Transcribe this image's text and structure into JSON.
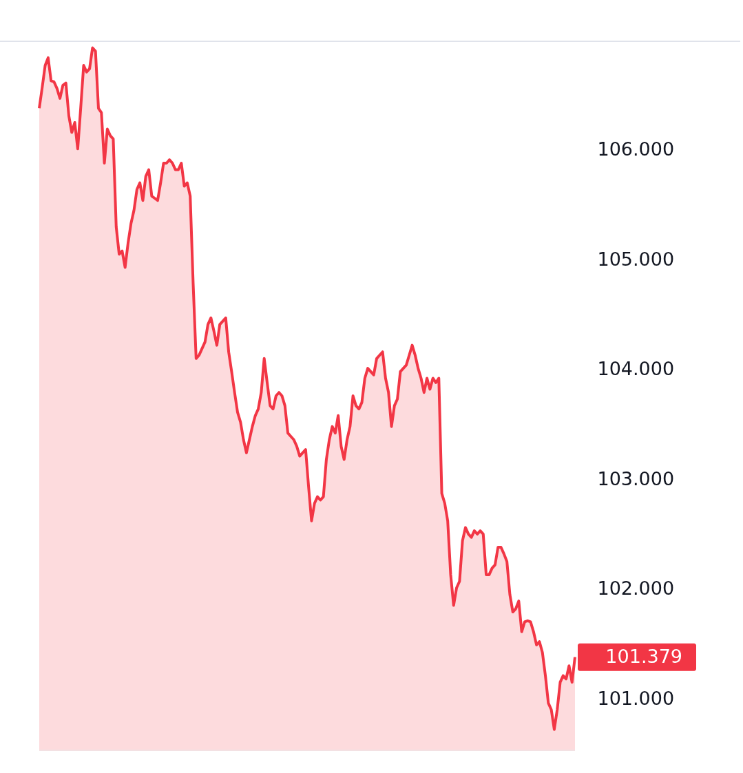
{
  "chart_data": {
    "type": "area",
    "ylim": [
      100.53,
      106.99
    ],
    "yticks": [
      {
        "value": 101,
        "label": "101.000"
      },
      {
        "value": 102,
        "label": "102.000"
      },
      {
        "value": 103,
        "label": "103.000"
      },
      {
        "value": 104,
        "label": "104.000"
      },
      {
        "value": 105,
        "label": "105.000"
      },
      {
        "value": 106,
        "label": "106.000"
      }
    ],
    "annotations": [
      "101.379"
    ],
    "series": [
      {
        "color": "#f23645",
        "values": [
          106.38,
          106.57,
          106.77,
          106.84,
          106.63,
          106.62,
          106.56,
          106.47,
          106.59,
          106.61,
          106.31,
          106.16,
          106.25,
          106.01,
          106.38,
          106.77,
          106.71,
          106.74,
          106.93,
          106.9,
          106.38,
          106.34,
          105.88,
          106.19,
          106.13,
          106.1,
          105.3,
          105.05,
          105.08,
          104.93,
          105.15,
          105.33,
          105.45,
          105.64,
          105.7,
          105.54,
          105.76,
          105.82,
          105.58,
          105.56,
          105.54,
          105.7,
          105.88,
          105.88,
          105.91,
          105.88,
          105.82,
          105.82,
          105.88,
          105.67,
          105.7,
          105.58,
          104.78,
          104.1,
          104.13,
          104.19,
          104.25,
          104.41,
          104.47,
          104.35,
          104.22,
          104.41,
          104.44,
          104.47,
          104.16,
          103.98,
          103.79,
          103.61,
          103.52,
          103.36,
          103.24,
          103.36,
          103.48,
          103.58,
          103.64,
          103.79,
          104.1,
          103.88,
          103.67,
          103.64,
          103.76,
          103.79,
          103.76,
          103.67,
          103.42,
          103.39,
          103.36,
          103.3,
          103.21,
          103.24,
          103.27,
          102.93,
          102.62,
          102.78,
          102.84,
          102.81,
          102.84,
          103.18,
          103.36,
          103.48,
          103.42,
          103.58,
          103.3,
          103.18,
          103.36,
          103.48,
          103.76,
          103.67,
          103.64,
          103.7,
          103.92,
          104.01,
          103.98,
          103.95,
          104.1,
          104.13,
          104.16,
          103.92,
          103.79,
          103.48,
          103.67,
          103.73,
          103.98,
          104.01,
          104.04,
          104.13,
          104.22,
          104.13,
          104.01,
          103.92,
          103.79,
          103.92,
          103.82,
          103.92,
          103.88,
          103.92,
          102.87,
          102.78,
          102.62,
          102.13,
          101.85,
          102.01,
          102.07,
          102.44,
          102.56,
          102.5,
          102.47,
          102.53,
          102.5,
          102.53,
          102.5,
          102.13,
          102.13,
          102.19,
          102.22,
          102.38,
          102.38,
          102.32,
          102.25,
          101.95,
          101.79,
          101.82,
          101.89,
          101.61,
          101.7,
          101.71,
          101.7,
          101.61,
          101.49,
          101.52,
          101.42,
          101.21,
          100.96,
          100.9,
          100.72,
          100.9,
          101.15,
          101.21,
          101.18,
          101.3,
          101.15,
          101.379
        ]
      }
    ]
  }
}
